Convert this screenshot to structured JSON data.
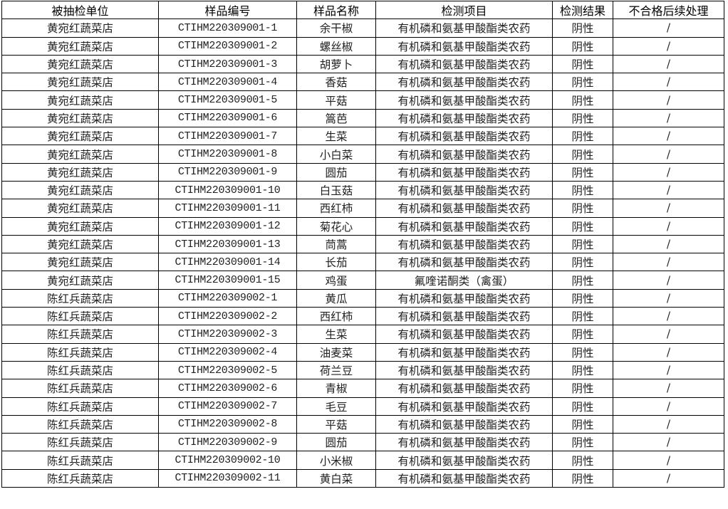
{
  "table": {
    "headers": [
      "被抽检单位",
      "样品编号",
      "样品名称",
      "检测项目",
      "检测结果",
      "不合格后续处理"
    ],
    "rows": [
      [
        "黄宛红蔬菜店",
        "CTIHM220309001-1",
        "余干椒",
        "有机磷和氨基甲酸酯类农药",
        "阴性",
        "/"
      ],
      [
        "黄宛红蔬菜店",
        "CTIHM220309001-2",
        "螺丝椒",
        "有机磷和氨基甲酸酯类农药",
        "阴性",
        "/"
      ],
      [
        "黄宛红蔬菜店",
        "CTIHM220309001-3",
        "胡萝卜",
        "有机磷和氨基甲酸酯类农药",
        "阴性",
        "/"
      ],
      [
        "黄宛红蔬菜店",
        "CTIHM220309001-4",
        "香菇",
        "有机磷和氨基甲酸酯类农药",
        "阴性",
        "/"
      ],
      [
        "黄宛红蔬菜店",
        "CTIHM220309001-5",
        "平菇",
        "有机磷和氨基甲酸酯类农药",
        "阴性",
        "/"
      ],
      [
        "黄宛红蔬菜店",
        "CTIHM220309001-6",
        "篙芭",
        "有机磷和氨基甲酸酯类农药",
        "阴性",
        "/"
      ],
      [
        "黄宛红蔬菜店",
        "CTIHM220309001-7",
        "生菜",
        "有机磷和氨基甲酸酯类农药",
        "阴性",
        "/"
      ],
      [
        "黄宛红蔬菜店",
        "CTIHM220309001-8",
        "小白菜",
        "有机磷和氨基甲酸酯类农药",
        "阴性",
        "/"
      ],
      [
        "黄宛红蔬菜店",
        "CTIHM220309001-9",
        "圆茄",
        "有机磷和氨基甲酸酯类农药",
        "阴性",
        "/"
      ],
      [
        "黄宛红蔬菜店",
        "CTIHM220309001-10",
        "白玉菇",
        "有机磷和氨基甲酸酯类农药",
        "阴性",
        "/"
      ],
      [
        "黄宛红蔬菜店",
        "CTIHM220309001-11",
        "西红柿",
        "有机磷和氨基甲酸酯类农药",
        "阴性",
        "/"
      ],
      [
        "黄宛红蔬菜店",
        "CTIHM220309001-12",
        "菊花心",
        "有机磷和氨基甲酸酯类农药",
        "阴性",
        "/"
      ],
      [
        "黄宛红蔬菜店",
        "CTIHM220309001-13",
        "茼蒿",
        "有机磷和氨基甲酸酯类农药",
        "阴性",
        "/"
      ],
      [
        "黄宛红蔬菜店",
        "CTIHM220309001-14",
        "长茄",
        "有机磷和氨基甲酸酯类农药",
        "阴性",
        "/"
      ],
      [
        "黄宛红蔬菜店",
        "CTIHM220309001-15",
        "鸡蛋",
        "氟喹诺酮类（禽蛋）",
        "阴性",
        "/"
      ],
      [
        "陈红兵蔬菜店",
        "CTIHM220309002-1",
        "黄瓜",
        "有机磷和氨基甲酸酯类农药",
        "阴性",
        "/"
      ],
      [
        "陈红兵蔬菜店",
        "CTIHM220309002-2",
        "西红柿",
        "有机磷和氨基甲酸酯类农药",
        "阴性",
        "/"
      ],
      [
        "陈红兵蔬菜店",
        "CTIHM220309002-3",
        "生菜",
        "有机磷和氨基甲酸酯类农药",
        "阴性",
        "/"
      ],
      [
        "陈红兵蔬菜店",
        "CTIHM220309002-4",
        "油麦菜",
        "有机磷和氨基甲酸酯类农药",
        "阴性",
        "/"
      ],
      [
        "陈红兵蔬菜店",
        "CTIHM220309002-5",
        "荷兰豆",
        "有机磷和氨基甲酸酯类农药",
        "阴性",
        "/"
      ],
      [
        "陈红兵蔬菜店",
        "CTIHM220309002-6",
        "青椒",
        "有机磷和氨基甲酸酯类农药",
        "阴性",
        "/"
      ],
      [
        "陈红兵蔬菜店",
        "CTIHM220309002-7",
        "毛豆",
        "有机磷和氨基甲酸酯类农药",
        "阴性",
        "/"
      ],
      [
        "陈红兵蔬菜店",
        "CTIHM220309002-8",
        "平菇",
        "有机磷和氨基甲酸酯类农药",
        "阴性",
        "/"
      ],
      [
        "陈红兵蔬菜店",
        "CTIHM220309002-9",
        "圆茄",
        "有机磷和氨基甲酸酯类农药",
        "阴性",
        "/"
      ],
      [
        "陈红兵蔬菜店",
        "CTIHM220309002-10",
        "小米椒",
        "有机磷和氨基甲酸酯类农药",
        "阴性",
        "/"
      ],
      [
        "陈红兵蔬菜店",
        "CTIHM220309002-11",
        "黄白菜",
        "有机磷和氨基甲酸酯类农药",
        "阴性",
        "/"
      ]
    ]
  }
}
